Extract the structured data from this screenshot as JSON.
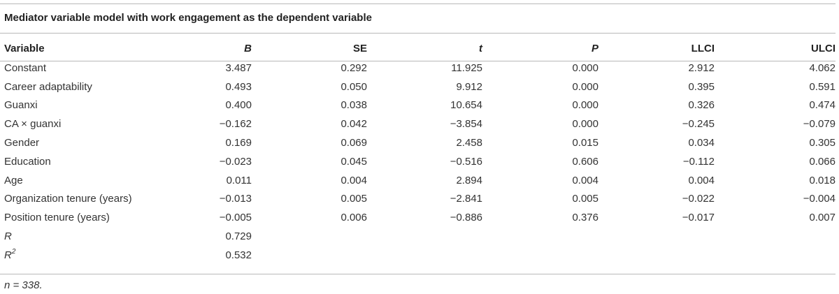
{
  "caption": "Mediator variable model with work engagement as the dependent variable",
  "headers": [
    "Variable",
    "B",
    "SE",
    "t",
    "P",
    "LLCI",
    "ULCI"
  ],
  "rows": [
    [
      "Constant",
      "3.487",
      "0.292",
      "11.925",
      "0.000",
      "2.912",
      "4.062"
    ],
    [
      "Career adaptability",
      "0.493",
      "0.050",
      "9.912",
      "0.000",
      "0.395",
      "0.591"
    ],
    [
      "Guanxi",
      "0.400",
      "0.038",
      "10.654",
      "0.000",
      "0.326",
      "0.474"
    ],
    [
      "CA × guanxi",
      "−0.162",
      "0.042",
      "−3.854",
      "0.000",
      "−0.245",
      "−0.079"
    ],
    [
      "Gender",
      "0.169",
      "0.069",
      "2.458",
      "0.015",
      "0.034",
      "0.305"
    ],
    [
      "Education",
      "−0.023",
      "0.045",
      "−0.516",
      "0.606",
      "−0.112",
      "0.066"
    ],
    [
      "Age",
      "0.011",
      "0.004",
      "2.894",
      "0.004",
      "0.004",
      "0.018"
    ],
    [
      "Organization tenure (years)",
      "−0.013",
      "0.005",
      "−2.841",
      "0.005",
      "−0.022",
      "−0.004"
    ],
    [
      "Position tenure (years)",
      "−0.005",
      "0.006",
      "−0.886",
      "0.376",
      "−0.017",
      "0.007"
    ]
  ],
  "fit": {
    "r_label": "R",
    "r_value": "0.729",
    "r2_label": "R",
    "r2_sup": "2",
    "r2_value": "0.532"
  },
  "footnote": "n = 338."
}
